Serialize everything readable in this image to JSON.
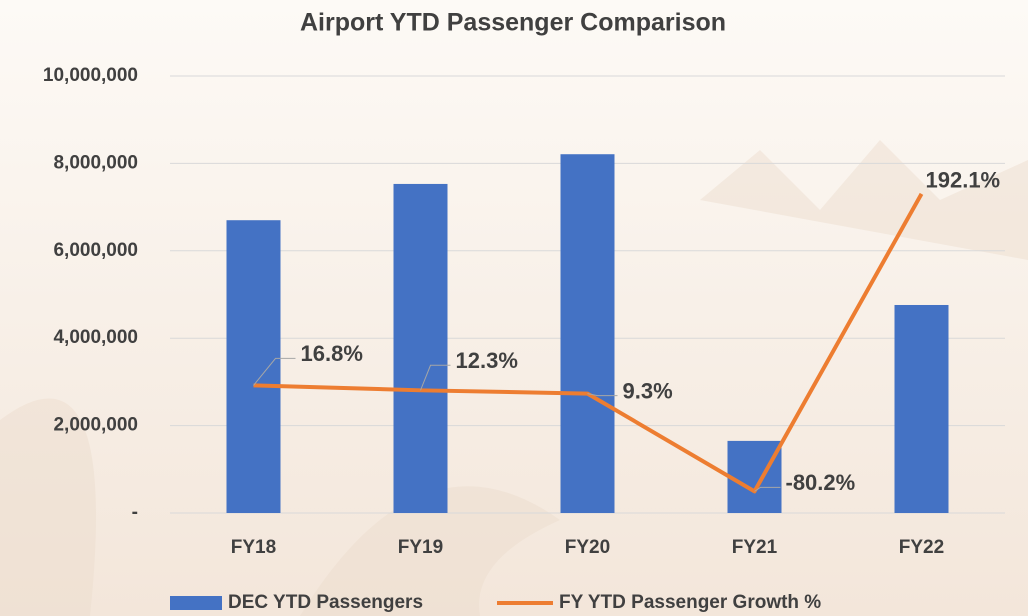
{
  "chart_data": {
    "type": "bar",
    "title": "Airport YTD Passenger Comparison",
    "categories": [
      "FY18",
      "FY19",
      "FY20",
      "FY21",
      "FY22"
    ],
    "series": [
      {
        "name": "DEC YTD Passengers",
        "type": "bar",
        "color": "#4472c4",
        "values": [
          6700000,
          7530000,
          8210000,
          1650000,
          4760000
        ]
      },
      {
        "name": "FY YTD Passenger Growth %",
        "type": "line",
        "axis": "y2",
        "color": "#ed7d31",
        "values": [
          16.8,
          12.3,
          9.3,
          -80.2,
          192.1
        ],
        "value_labels": [
          "16.8%",
          "12.3%",
          "9.3%",
          "-80.2%",
          "192.1%"
        ]
      }
    ],
    "ylim": [
      0,
      10000000
    ],
    "yticks": [
      {
        "value": 0,
        "label": "-"
      },
      {
        "value": 2000000,
        "label": "2,000,000"
      },
      {
        "value": 4000000,
        "label": "4,000,000"
      },
      {
        "value": 6000000,
        "label": "6,000,000"
      },
      {
        "value": 8000000,
        "label": "8,000,000"
      },
      {
        "value": 10000000,
        "label": "10,000,000"
      }
    ],
    "y2lim": [
      -100,
      300
    ],
    "grid": true,
    "legend": "bottom"
  }
}
